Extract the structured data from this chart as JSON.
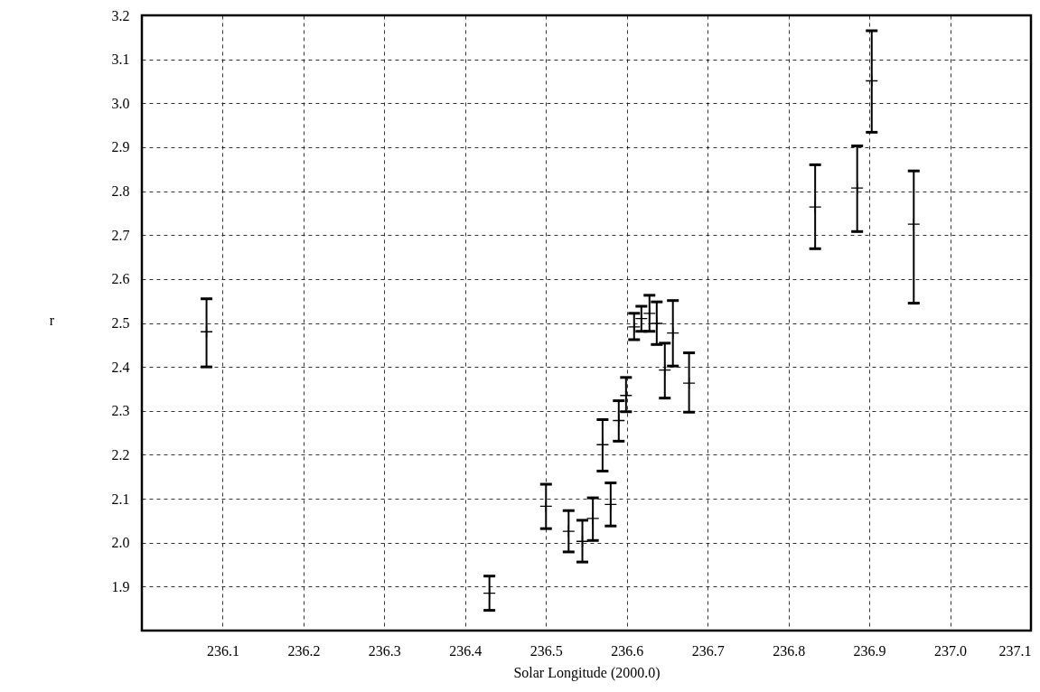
{
  "chart_data": {
    "type": "scatter",
    "xlabel": "Solar Longitude (2000.0)",
    "ylabel": "r",
    "marker": "cross",
    "x": [
      236.08,
      236.43,
      236.5,
      236.528,
      236.545,
      236.558,
      236.58,
      236.57,
      236.59,
      236.599,
      236.609,
      236.618,
      236.628,
      236.637,
      236.647,
      236.657,
      236.677,
      236.833,
      236.885,
      236.903,
      236.955
    ],
    "series": [
      {
        "color": "#000000",
        "values": [
          2.48,
          1.885,
          2.083,
          2.026,
          2.003,
          2.055,
          2.087,
          2.223,
          2.278,
          2.335,
          2.491,
          2.51,
          2.522,
          2.499,
          2.393,
          2.477,
          2.363,
          2.764,
          2.807,
          3.051,
          2.725
        ],
        "errors": [
          [
            2.4,
            2.555
          ],
          [
            1.846,
            1.924
          ],
          [
            2.032,
            2.133
          ],
          [
            1.979,
            2.073
          ],
          [
            1.956,
            2.051
          ],
          [
            2.005,
            2.102
          ],
          [
            2.038,
            2.136
          ],
          [
            2.163,
            2.28
          ],
          [
            2.231,
            2.323
          ],
          [
            2.298,
            2.376
          ],
          [
            2.462,
            2.522
          ],
          [
            2.481,
            2.538
          ],
          [
            2.481,
            2.563
          ],
          [
            2.451,
            2.548
          ],
          [
            2.329,
            2.454
          ],
          [
            2.402,
            2.551
          ],
          [
            2.297,
            2.432
          ],
          [
            2.669,
            2.86
          ],
          [
            2.708,
            2.903
          ],
          [
            2.934,
            3.165
          ],
          [
            2.545,
            2.846
          ]
        ]
      }
    ],
    "xlim": [
      236.0,
      237.1
    ],
    "xticks": [
      236.1,
      236.2,
      236.3,
      236.4,
      236.5,
      236.6,
      236.7,
      236.8,
      236.9,
      {
        "value": 237,
        "label": "237.0"
      },
      237.1
    ],
    "ylim": [
      1.8,
      3.2
    ],
    "yticks": [
      1.9,
      {
        "value": 2,
        "label": "2.0"
      },
      2.1,
      2.2,
      2.3,
      2.4,
      2.5,
      2.6,
      2.7,
      2.8,
      2.9,
      {
        "value": 3,
        "label": "3.0"
      },
      3.1,
      3.2
    ],
    "grid": true,
    "line_style": "dashed"
  }
}
